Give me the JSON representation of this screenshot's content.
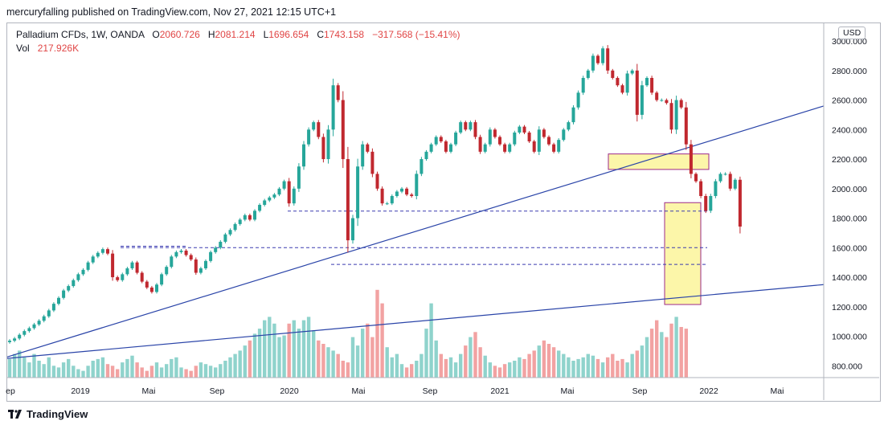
{
  "header": {
    "text": "mercuryfalling published on TradingView.com, Nov 27, 2021 12:15 UTC+1"
  },
  "legend": {
    "symbol": "Palladium CFDs, 1W, OANDA",
    "open_label": "O",
    "open": "2060.726",
    "high_label": "H",
    "high": "2081.214",
    "low_label": "L",
    "low": "1696.654",
    "close_label": "C",
    "close": "1743.158",
    "change": "−317.568 (−15.41%)",
    "vol_label": "Vol",
    "vol": "217.926K"
  },
  "currency": "USD",
  "footer": {
    "brand": "TradingView",
    "logo": "tradingview-logo-icon"
  },
  "colors": {
    "up": "#26a69a",
    "down": "#c0282f",
    "vol_up": "#8fd3cc",
    "vol_down": "#f2a2a2",
    "trendline": "#2a44a8",
    "dashed": "#3b3bb0",
    "box_fill": "#fbf49a",
    "box_border": "#9c2a8a",
    "grid": "#f0f3fa"
  },
  "chart_data": {
    "type": "candlestick",
    "interval": "1W",
    "x_tick_labels": [
      "ep",
      "2019",
      "Mai",
      "Sep",
      "2020",
      "Mai",
      "Sep",
      "2021",
      "Mai",
      "Sep",
      "2022",
      "Mai"
    ],
    "y_tick_labels": [
      "3000.000",
      "2800.000",
      "2600.000",
      "2400.000",
      "2200.000",
      "2000.000",
      "1800.000",
      "1600.000",
      "1400.000",
      "1200.000",
      "1000.000",
      "800.000"
    ],
    "ylim": [
      720,
      3120
    ],
    "y_scale": "linear",
    "grid": false,
    "last_bar": {
      "open": 2060.726,
      "high": 2081.214,
      "low": 1696.654,
      "close": 1743.158,
      "volume": "217.926K"
    },
    "price_path": [
      970,
      985,
      1010,
      1035,
      1055,
      1080,
      1105,
      1135,
      1175,
      1220,
      1260,
      1310,
      1340,
      1380,
      1420,
      1450,
      1500,
      1540,
      1565,
      1590,
      1560,
      1400,
      1380,
      1420,
      1460,
      1500,
      1430,
      1370,
      1330,
      1300,
      1350,
      1420,
      1470,
      1540,
      1570,
      1580,
      1550,
      1520,
      1430,
      1460,
      1510,
      1570,
      1600,
      1640,
      1690,
      1720,
      1760,
      1790,
      1820,
      1790,
      1850,
      1890,
      1920,
      1940,
      1960,
      2000,
      2050,
      1900,
      2000,
      2150,
      2300,
      2400,
      2450,
      2350,
      2200,
      2400,
      2700,
      2600,
      2200,
      1650,
      1800,
      2150,
      2300,
      2250,
      2100,
      2000,
      1900,
      1900,
      1950,
      1980,
      2000,
      1960,
      1950,
      2100,
      2200,
      2250,
      2300,
      2350,
      2320,
      2250,
      2300,
      2380,
      2450,
      2400,
      2450,
      2350,
      2250,
      2300,
      2400,
      2350,
      2300,
      2250,
      2300,
      2380,
      2420,
      2380,
      2320,
      2250,
      2400,
      2350,
      2300,
      2250,
      2330,
      2400,
      2450,
      2550,
      2650,
      2750,
      2800,
      2900,
      2850,
      2950,
      2800,
      2750,
      2700,
      2650,
      2780,
      2800,
      2500,
      2700,
      2750,
      2650,
      2600,
      2600,
      2580,
      2400,
      2600,
      2550,
      2300,
      2100,
      2050,
      1950,
      1850,
      1950,
      2050,
      2100,
      2100,
      2000,
      2060,
      1743
    ],
    "volume_path": [
      870,
      900,
      920,
      880,
      850,
      900,
      860,
      840,
      880,
      830,
      820,
      850,
      870,
      830,
      810,
      800,
      830,
      860,
      870,
      880,
      840,
      830,
      810,
      850,
      870,
      890,
      850,
      820,
      800,
      830,
      850,
      820,
      840,
      870,
      880,
      820,
      810,
      800,
      830,
      850,
      840,
      830,
      820,
      840,
      860,
      880,
      900,
      920,
      950,
      980,
      1020,
      1050,
      1100,
      1120,
      1080,
      1000,
      1010,
      1080,
      1100,
      1050,
      1100,
      1120,
      1040,
      980,
      960,
      940,
      920,
      900,
      860,
      850,
      1000,
      950,
      1050,
      1080,
      1000,
      1280,
      1200,
      940,
      880,
      900,
      840,
      820,
      840,
      860,
      900,
      1050,
      1200,
      980,
      900,
      870,
      880,
      850,
      900,
      950,
      1000,
      1030,
      940,
      890,
      850,
      830,
      820,
      840,
      850,
      860,
      880,
      870,
      900,
      920,
      950,
      980,
      960,
      940,
      920,
      900,
      880,
      860,
      870,
      880,
      900,
      890,
      870,
      850,
      880,
      900,
      860,
      870,
      850,
      900,
      920,
      950,
      1000,
      1050,
      1100,
      1030,
      1000,
      1080,
      1120,
      1060,
      1050
    ]
  },
  "annotations": {
    "dashed_levels": [
      {
        "price": 1848,
        "label": ""
      },
      {
        "price": 1610,
        "label": ""
      },
      {
        "price": 1600,
        "label": ""
      },
      {
        "price": 1487,
        "label": ""
      }
    ],
    "trendlines": [
      {
        "name": "upper-trendline",
        "from": [
          0,
          860
        ],
        "to": [
          1,
          2560
        ]
      },
      {
        "name": "lower-trendline",
        "from": [
          0,
          850
        ],
        "to": [
          1,
          1350
        ]
      }
    ],
    "boxes": [
      {
        "name": "resistance-box",
        "price_top": 2235,
        "price_bottom": 2130
      },
      {
        "name": "target-box",
        "price_top": 1905,
        "price_bottom": 1215
      }
    ]
  }
}
